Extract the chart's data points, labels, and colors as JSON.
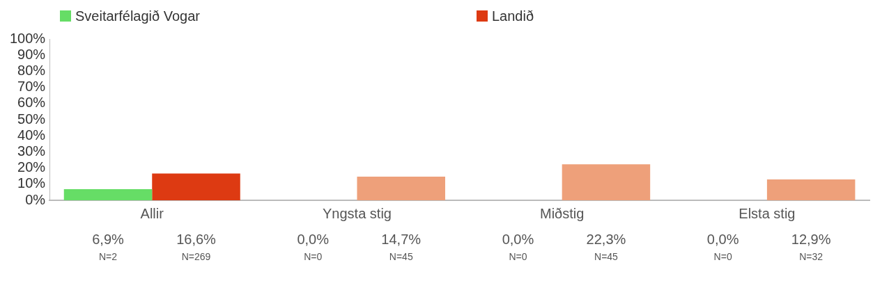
{
  "chart_data": {
    "type": "bar",
    "categories": [
      "Allir",
      "Yngsta stig",
      "Miðstig",
      "Elsta stig"
    ],
    "series": [
      {
        "name": "Sveitarfélagið Vogar",
        "color": "#66dd66",
        "values": [
          6.9,
          0.0,
          0.0,
          0.0
        ],
        "value_labels": [
          "6,9%",
          "0,0%",
          "0,0%",
          "0,0%"
        ]
      },
      {
        "name": "Landið",
        "color": "#dd3a12",
        "colors": [
          "#dd3a12",
          "#eea07a",
          "#eea07a",
          "#eea07a"
        ],
        "values": [
          16.6,
          14.7,
          22.3,
          12.9
        ],
        "value_labels": [
          "16,6%",
          "14,7%",
          "22,3%",
          "12,9%"
        ]
      }
    ],
    "annotations": [
      "N=2",
      "N=269",
      "N=0",
      "N=45",
      "N=0",
      "N=45",
      "N=0",
      "N=32"
    ],
    "ylim": [
      0,
      100
    ],
    "yticks": [
      {
        "value": 0,
        "label": "0%"
      },
      {
        "value": 10,
        "label": "10%"
      },
      {
        "value": 20,
        "label": "20%"
      },
      {
        "value": 30,
        "label": "30%"
      },
      {
        "value": 40,
        "label": "40%"
      },
      {
        "value": 50,
        "label": "50%"
      },
      {
        "value": 60,
        "label": "60%"
      },
      {
        "value": 70,
        "label": "70%"
      },
      {
        "value": 80,
        "label": "80%"
      },
      {
        "value": 90,
        "label": "90%"
      },
      {
        "value": 100,
        "label": "100%"
      }
    ],
    "grid": false,
    "legend": "top left"
  }
}
